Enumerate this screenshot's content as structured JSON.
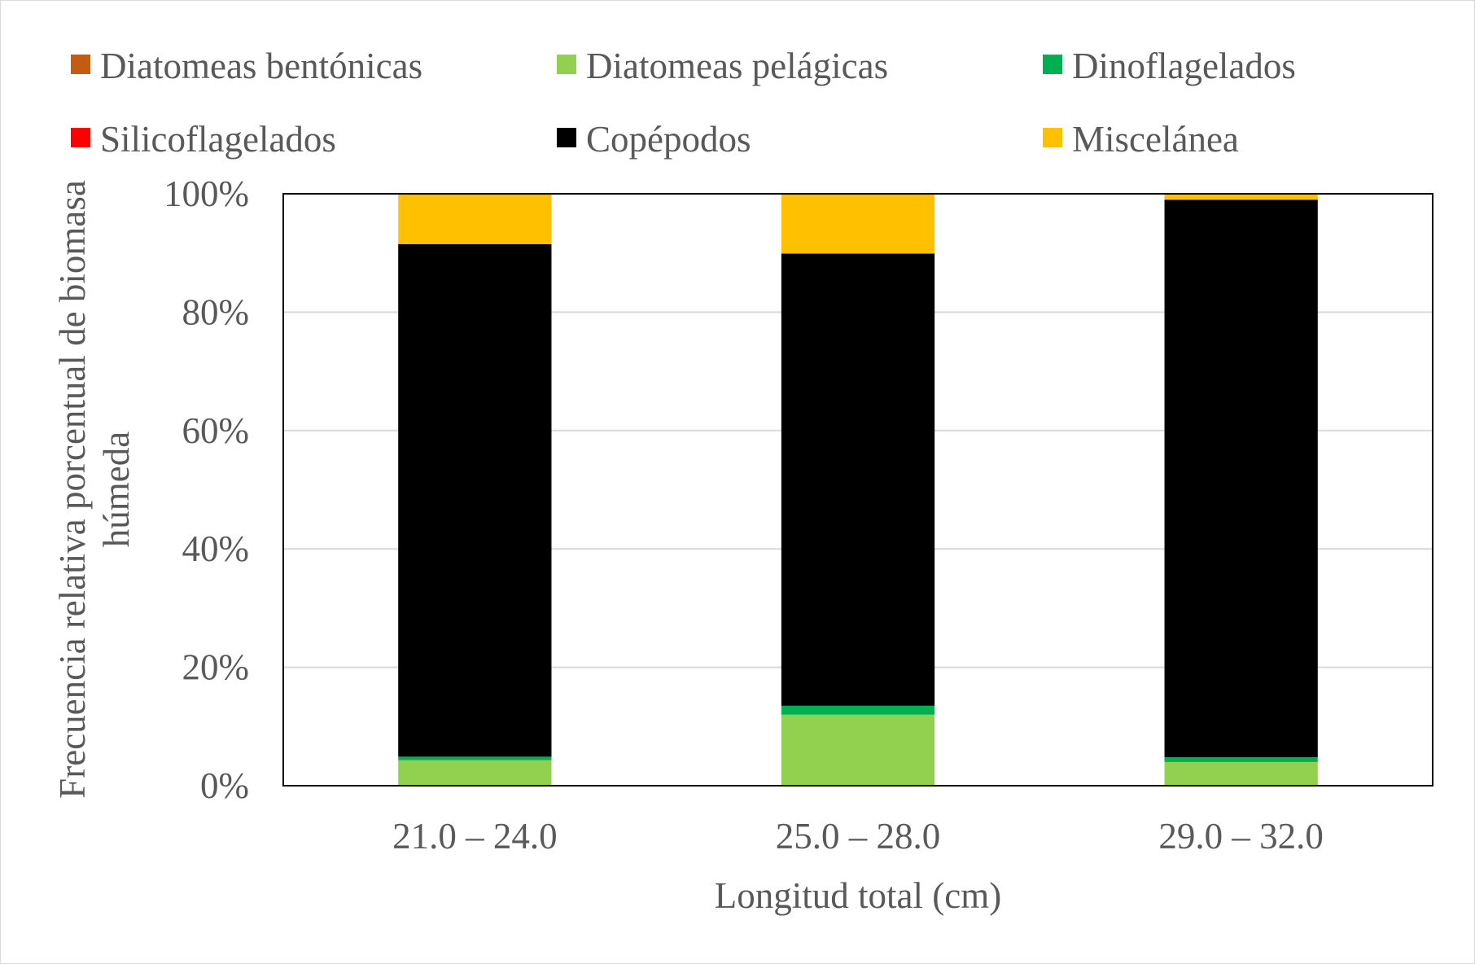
{
  "chart_data": {
    "type": "bar",
    "stacked": true,
    "percent_stacked": true,
    "categories": [
      "21.0 – 24.0",
      "25.0 – 28.0",
      "29.0 – 32.0"
    ],
    "series": [
      {
        "name": "Diatomeas bentónicas",
        "color": "#C55A11",
        "values": [
          0,
          0,
          0
        ]
      },
      {
        "name": "Diatomeas pelágicas",
        "color": "#92D050",
        "values": [
          4.3,
          12.0,
          4.0
        ]
      },
      {
        "name": "Dinoflagelados",
        "color": "#00B050",
        "values": [
          0.6,
          1.5,
          0.8
        ]
      },
      {
        "name": "Silicoflagelados",
        "color": "#FF0000",
        "values": [
          0,
          0,
          0
        ]
      },
      {
        "name": "Copépodos",
        "color": "#000000",
        "values": [
          86.6,
          76.4,
          94.2
        ]
      },
      {
        "name": "Miscelánea",
        "color": "#FFC000",
        "values": [
          8.5,
          10.1,
          1.0
        ]
      }
    ],
    "xlabel": "Longitud total (cm)",
    "ylabel_lines": [
      "Frecuencia relativa porcentual de biomasa",
      "húmeda"
    ],
    "yticks": [
      "0%",
      "20%",
      "40%",
      "60%",
      "80%",
      "100%"
    ],
    "ylim": [
      0,
      100
    ],
    "grid": true,
    "legend_position": "top"
  }
}
